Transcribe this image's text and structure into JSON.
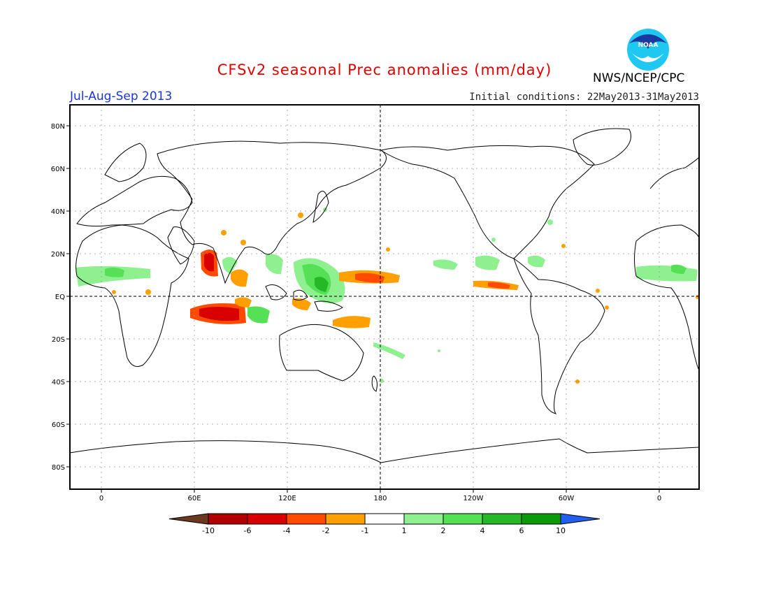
{
  "title": "CFSv2 seasonal Prec anomalies (mm/day)",
  "season": "Jul-Aug-Sep 2013",
  "initial_conditions": "Initial conditions: 22May2013-31May2013",
  "organization": "NWS/NCEP/CPC",
  "logo_text": "NOAA",
  "map": {
    "lat_labels": [
      "80N",
      "60N",
      "40N",
      "20N",
      "EQ",
      "20S",
      "40S",
      "60S",
      "80S"
    ],
    "lon_labels": [
      "0",
      "60E",
      "120E",
      "180",
      "120W",
      "60W",
      "0"
    ]
  },
  "colorbar": {
    "colors": [
      "#6b3a1e",
      "#b00000",
      "#d80000",
      "#ff4a00",
      "#ff9f00",
      "#ffffff",
      "#8ef08e",
      "#55e055",
      "#27b827",
      "#0a9a0a",
      "#2060f0"
    ],
    "labels": [
      "-10",
      "-6",
      "-4",
      "-2",
      "-1",
      "1",
      "2",
      "4",
      "6",
      "10"
    ]
  },
  "colors": {
    "title": "#e00000",
    "season": "#1a35e0",
    "wet_light": "#8ef08e",
    "wet_mid": "#55e055",
    "dry_light": "#ff9f00",
    "dry_mid": "#ff4a00",
    "dry_strong": "#d80000"
  }
}
